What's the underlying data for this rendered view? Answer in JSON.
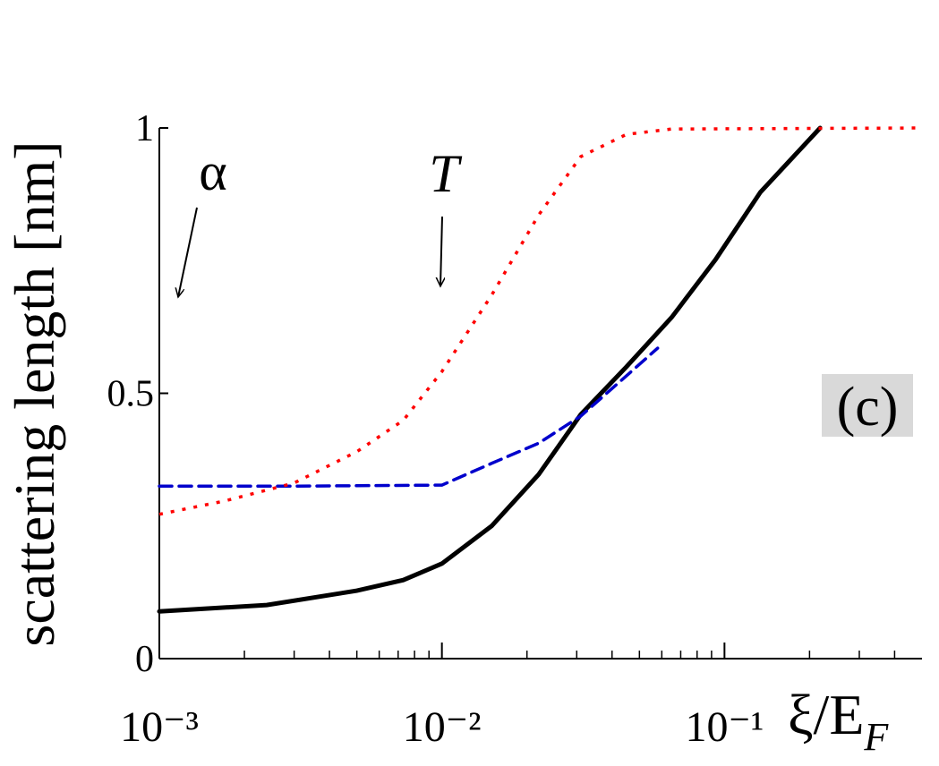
{
  "chart_data": {
    "type": "line",
    "ylabel": "scattering length [nm]",
    "xlabel": "ξ/E",
    "xlabel_subscript": "F",
    "xscale": "log",
    "xlim": [
      0.001,
      0.5
    ],
    "ylim": [
      0,
      1
    ],
    "xticks": [
      {
        "value": 0.001,
        "label": "10⁻³"
      },
      {
        "value": 0.01,
        "label": "10⁻²"
      },
      {
        "value": 0.1,
        "label": "10⁻¹"
      }
    ],
    "minor_xticks": [
      0.002,
      0.003,
      0.004,
      0.005,
      0.006,
      0.007,
      0.008,
      0.009,
      0.02,
      0.03,
      0.04,
      0.05,
      0.06,
      0.07,
      0.08,
      0.09,
      0.2,
      0.3,
      0.4
    ],
    "yticks": [
      0,
      0.5,
      1
    ],
    "annotations": [
      "α",
      "T",
      "(c)"
    ],
    "series": [
      {
        "color": "#000000",
        "linestyle": "solid",
        "x": [
          0.001,
          0.0024,
          0.005,
          0.0073,
          0.01,
          0.015,
          0.022,
          0.031,
          0.045,
          0.065,
          0.093,
          0.134,
          0.218
        ],
        "values": [
          0.089,
          0.101,
          0.128,
          0.148,
          0.179,
          0.25,
          0.347,
          0.46,
          0.55,
          0.643,
          0.752,
          0.879,
          1.0
        ]
      },
      {
        "color": "#0000cc",
        "linestyle": "dashed",
        "x": [
          0.001,
          0.003,
          0.01,
          0.015,
          0.022,
          0.031,
          0.045,
          0.058
        ],
        "values": [
          0.325,
          0.325,
          0.327,
          0.368,
          0.406,
          0.457,
          0.533,
          0.585
        ]
      },
      {
        "color": "#ff0000",
        "linestyle": "dotted",
        "x": [
          0.001,
          0.0017,
          0.003,
          0.005,
          0.0073,
          0.01,
          0.015,
          0.022,
          0.031,
          0.045,
          0.065,
          0.5
        ],
        "values": [
          0.272,
          0.297,
          0.331,
          0.39,
          0.449,
          0.541,
          0.685,
          0.836,
          0.946,
          0.988,
          0.998,
          1.0
        ]
      }
    ]
  }
}
